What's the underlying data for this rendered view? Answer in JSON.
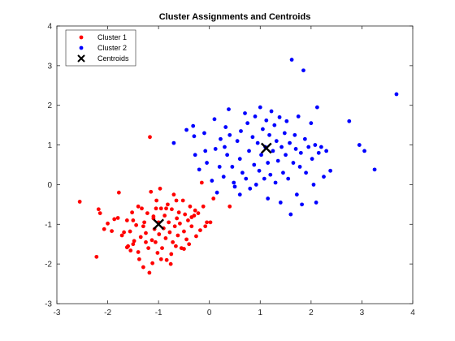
{
  "chart_data": {
    "type": "scatter",
    "title": "Cluster Assignments and Centroids",
    "xlabel": "",
    "ylabel": "",
    "xlim": [
      -3,
      4
    ],
    "ylim": [
      -3,
      4
    ],
    "xticks": [
      "-3",
      "-2",
      "-1",
      "0",
      "1",
      "2",
      "3",
      "4"
    ],
    "yticks": [
      "-3",
      "-2",
      "-1",
      "0",
      "1",
      "2",
      "3",
      "4"
    ],
    "grid": false,
    "legend_position": "top-left",
    "series": [
      {
        "name": "Cluster 1",
        "color": "#ff0000",
        "marker": "dot",
        "points": [
          [
            -2.55,
            -0.43
          ],
          [
            -2.22,
            -1.82
          ],
          [
            -2.18,
            -0.62
          ],
          [
            -2.15,
            -0.72
          ],
          [
            -2.07,
            -1.12
          ],
          [
            -2.0,
            -0.98
          ],
          [
            -1.92,
            -1.17
          ],
          [
            -1.87,
            -0.87
          ],
          [
            -1.8,
            -0.84
          ],
          [
            -1.78,
            -0.2
          ],
          [
            -1.72,
            -1.28
          ],
          [
            -1.68,
            -1.2
          ],
          [
            -1.62,
            -0.9
          ],
          [
            -1.6,
            -1.55
          ],
          [
            -1.56,
            -1.18
          ],
          [
            -1.55,
            -1.66
          ],
          [
            -1.52,
            -0.7
          ],
          [
            -1.5,
            -1.5
          ],
          [
            -1.48,
            -1.42
          ],
          [
            -1.44,
            -1.02
          ],
          [
            -1.4,
            -0.55
          ],
          [
            -1.38,
            -1.88
          ],
          [
            -1.35,
            -1.32
          ],
          [
            -1.33,
            -0.6
          ],
          [
            -1.3,
            -2.08
          ],
          [
            -1.28,
            -0.95
          ],
          [
            -1.25,
            -1.22
          ],
          [
            -1.22,
            -0.72
          ],
          [
            -1.2,
            -1.6
          ],
          [
            -1.18,
            -2.22
          ],
          [
            -1.17,
            1.2
          ],
          [
            -1.15,
            -0.18
          ],
          [
            -1.13,
            -1.4
          ],
          [
            -1.12,
            -1.98
          ],
          [
            -1.1,
            -0.85
          ],
          [
            -1.08,
            -1.12
          ],
          [
            -1.06,
            -1.45
          ],
          [
            -1.04,
            -0.4
          ],
          [
            -1.02,
            -1.72
          ],
          [
            -1.0,
            -0.95
          ],
          [
            -0.99,
            -1.25
          ],
          [
            -0.97,
            -0.1
          ],
          [
            -0.95,
            -0.6
          ],
          [
            -0.93,
            -1.6
          ],
          [
            -0.9,
            -1.1
          ],
          [
            -0.88,
            -0.78
          ],
          [
            -0.86,
            -1.35
          ],
          [
            -0.84,
            -1.9
          ],
          [
            -0.82,
            -0.5
          ],
          [
            -0.8,
            -0.95
          ],
          [
            -0.78,
            -1.2
          ],
          [
            -0.76,
            -2.0
          ],
          [
            -0.74,
            -0.62
          ],
          [
            -0.72,
            -1.45
          ],
          [
            -0.7,
            -0.25
          ],
          [
            -0.68,
            -1.05
          ],
          [
            -0.66,
            -1.55
          ],
          [
            -0.64,
            -0.85
          ],
          [
            -0.62,
            -1.28
          ],
          [
            -0.6,
            -0.7
          ],
          [
            -0.58,
            -0.98
          ],
          [
            -0.55,
            -1.6
          ],
          [
            -0.52,
            -0.4
          ],
          [
            -0.5,
            -1.18
          ],
          [
            -0.48,
            -0.75
          ],
          [
            -0.45,
            -1.38
          ],
          [
            -0.42,
            -0.9
          ],
          [
            -0.4,
            -1.5
          ],
          [
            -0.38,
            -0.55
          ],
          [
            -0.35,
            -1.05
          ],
          [
            -0.3,
            -0.78
          ],
          [
            -0.28,
            -0.65
          ],
          [
            -0.26,
            -1.3
          ],
          [
            -0.22,
            -0.72
          ],
          [
            -0.18,
            -1.15
          ],
          [
            -0.15,
            0.05
          ],
          [
            -0.12,
            -0.55
          ],
          [
            -0.08,
            -1.05
          ],
          [
            -0.05,
            -0.95
          ],
          [
            0.02,
            -0.95
          ],
          [
            0.08,
            -0.35
          ],
          [
            0.4,
            -0.55
          ],
          [
            -1.1,
            -0.8
          ],
          [
            -1.25,
            -1.45
          ],
          [
            -0.95,
            -1.88
          ],
          [
            -1.4,
            -1.7
          ],
          [
            -0.65,
            -0.4
          ],
          [
            -0.85,
            -0.6
          ],
          [
            -1.5,
            -0.9
          ],
          [
            -0.35,
            -0.82
          ],
          [
            -1.62,
            -1.58
          ],
          [
            -0.5,
            -1.62
          ],
          [
            -1.05,
            -0.6
          ],
          [
            -1.3,
            -1.05
          ],
          [
            -0.75,
            -1.75
          ]
        ]
      },
      {
        "name": "Cluster 2",
        "color": "#0000ff",
        "marker": "dot",
        "points": [
          [
            -0.7,
            1.05
          ],
          [
            -0.45,
            1.38
          ],
          [
            -0.32,
            1.48
          ],
          [
            -0.3,
            1.22
          ],
          [
            -0.28,
            0.75
          ],
          [
            -0.2,
            0.38
          ],
          [
            -0.1,
            1.3
          ],
          [
            -0.08,
            0.85
          ],
          [
            -0.05,
            0.55
          ],
          [
            0.05,
            0.1
          ],
          [
            0.1,
            1.65
          ],
          [
            0.12,
            0.9
          ],
          [
            0.15,
            -0.2
          ],
          [
            0.2,
            0.45
          ],
          [
            0.22,
            1.15
          ],
          [
            0.28,
            0.2
          ],
          [
            0.32,
            1.45
          ],
          [
            0.35,
            0.75
          ],
          [
            0.38,
            1.9
          ],
          [
            0.4,
            1.25
          ],
          [
            0.45,
            0.45
          ],
          [
            0.48,
            0.05
          ],
          [
            0.5,
            -0.05
          ],
          [
            0.55,
            1.1
          ],
          [
            0.6,
            0.65
          ],
          [
            0.62,
            1.35
          ],
          [
            0.65,
            0.3
          ],
          [
            0.7,
            1.8
          ],
          [
            0.72,
            0.15
          ],
          [
            0.75,
            1.55
          ],
          [
            0.78,
            0.85
          ],
          [
            0.8,
            -0.1
          ],
          [
            0.85,
            1.2
          ],
          [
            0.88,
            0.5
          ],
          [
            0.9,
            1.72
          ],
          [
            0.92,
            0.0
          ],
          [
            0.95,
            1.05
          ],
          [
            0.98,
            0.35
          ],
          [
            1.0,
            1.95
          ],
          [
            1.02,
            0.75
          ],
          [
            1.05,
            1.4
          ],
          [
            1.08,
            0.15
          ],
          [
            1.1,
            0.95
          ],
          [
            1.12,
            1.62
          ],
          [
            1.15,
            0.55
          ],
          [
            1.18,
            1.25
          ],
          [
            1.2,
            0.25
          ],
          [
            1.22,
            1.85
          ],
          [
            1.25,
            0.85
          ],
          [
            1.28,
            1.5
          ],
          [
            1.3,
            0.05
          ],
          [
            1.32,
            1.1
          ],
          [
            1.35,
            0.6
          ],
          [
            1.38,
            1.7
          ],
          [
            1.4,
            -0.45
          ],
          [
            1.42,
            0.95
          ],
          [
            1.45,
            0.3
          ],
          [
            1.48,
            1.3
          ],
          [
            1.5,
            0.75
          ],
          [
            1.52,
            1.6
          ],
          [
            1.55,
            0.15
          ],
          [
            1.58,
            1.05
          ],
          [
            1.6,
            -0.75
          ],
          [
            1.62,
            3.15
          ],
          [
            1.65,
            0.55
          ],
          [
            1.68,
            1.25
          ],
          [
            1.7,
            0.9
          ],
          [
            1.72,
            -0.25
          ],
          [
            1.75,
            1.72
          ],
          [
            1.78,
            0.45
          ],
          [
            1.8,
            0.8
          ],
          [
            1.82,
            -0.5
          ],
          [
            1.85,
            2.88
          ],
          [
            1.88,
            1.15
          ],
          [
            1.9,
            0.3
          ],
          [
            1.95,
            0.95
          ],
          [
            2.0,
            1.55
          ],
          [
            2.02,
            0.65
          ],
          [
            2.05,
            0.0
          ],
          [
            2.08,
            1.0
          ],
          [
            2.1,
            -0.45
          ],
          [
            2.12,
            1.95
          ],
          [
            2.15,
            0.8
          ],
          [
            2.2,
            0.95
          ],
          [
            2.25,
            0.2
          ],
          [
            2.3,
            0.85
          ],
          [
            2.38,
            0.35
          ],
          [
            2.75,
            1.6
          ],
          [
            2.95,
            1.0
          ],
          [
            3.05,
            0.85
          ],
          [
            3.25,
            0.38
          ],
          [
            3.68,
            2.28
          ],
          [
            0.6,
            -0.25
          ],
          [
            1.15,
            -0.35
          ],
          [
            0.3,
            0.95
          ]
        ]
      },
      {
        "name": "Centroids",
        "color": "#000000",
        "marker": "x",
        "points": [
          [
            -1.0,
            -1.0
          ],
          [
            1.12,
            0.92
          ]
        ]
      }
    ]
  }
}
